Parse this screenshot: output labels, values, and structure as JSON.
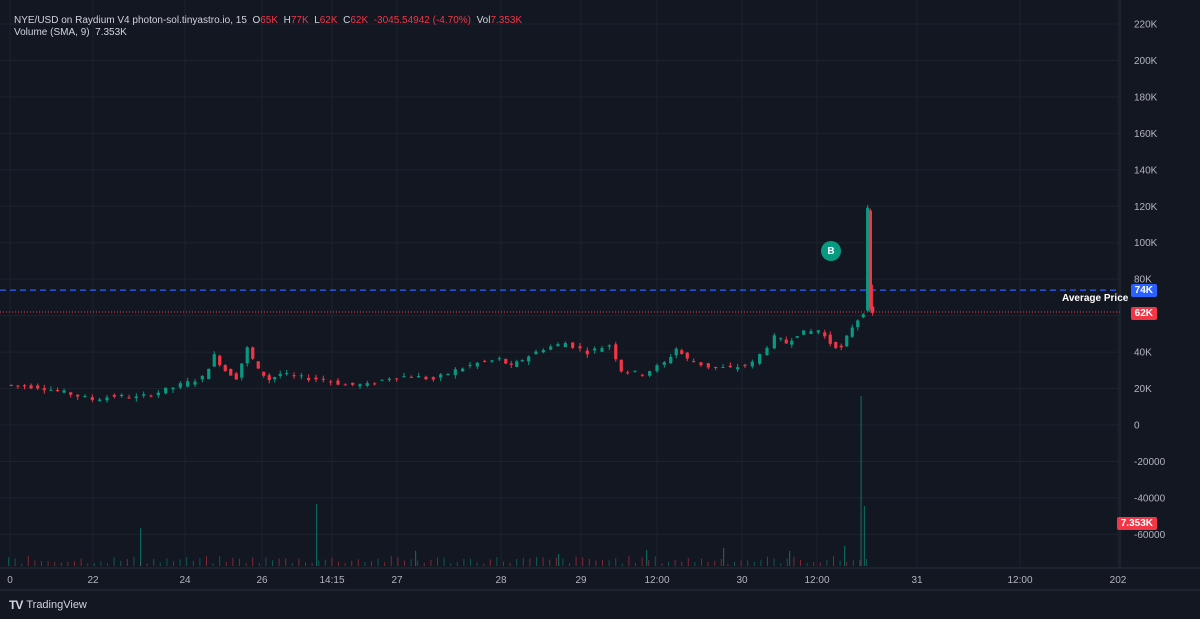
{
  "legend": {
    "symbol": "NYE/USD on Raydium V4 photon-sol.tinyastro.io, 15",
    "o_label": "O",
    "o_val": "65K",
    "h_label": "H",
    "h_val": "77K",
    "l_label": "L",
    "l_val": "62K",
    "c_label": "C",
    "c_val": "62K",
    "change": "-3045.54942 (-4.70%)",
    "vol_label": "Vol",
    "vol_val": "7.353K",
    "volume_study": "Volume (SMA, 9)",
    "volume_study_val": "7.353K"
  },
  "markers": {
    "buy_label": "B",
    "avg_price_label": "Average Price",
    "avg_price_tag": "74K",
    "last_price_tag": "62K",
    "volume_tag": "7.353K"
  },
  "brand": {
    "logo": "TV",
    "name": "TradingView"
  },
  "chart_data": {
    "type": "candlestick",
    "y_ticks": [
      220000,
      200000,
      180000,
      160000,
      140000,
      120000,
      100000,
      80000,
      60000,
      40000,
      20000,
      0,
      -20000,
      -40000,
      -60000
    ],
    "y_tick_labels": [
      "220K",
      "200K",
      "180K",
      "160K",
      "140K",
      "120K",
      "100K",
      "80K",
      "60K",
      "40K",
      "20K",
      "0",
      "-20000",
      "-40000",
      "-60000"
    ],
    "ylim": [
      -65000,
      225000
    ],
    "x_tick_labels": [
      "0",
      "22",
      "24",
      "26",
      "14:15",
      "27",
      "28",
      "29",
      "12:00",
      "30",
      "12:00",
      "31",
      "12:00",
      "202"
    ],
    "avg_price": 74000,
    "last_price": 62000,
    "price_path": [
      [
        0,
        22000
      ],
      [
        3,
        21000
      ],
      [
        6,
        17000
      ],
      [
        8,
        14000
      ],
      [
        10,
        16000
      ],
      [
        12,
        15000
      ],
      [
        14,
        18000
      ],
      [
        16,
        22000
      ],
      [
        18,
        26000
      ],
      [
        19,
        38000
      ],
      [
        20,
        30000
      ],
      [
        21,
        26000
      ],
      [
        22,
        42000
      ],
      [
        23,
        30000
      ],
      [
        24,
        25000
      ],
      [
        25,
        28000
      ],
      [
        27,
        26000
      ],
      [
        29,
        25000
      ],
      [
        31,
        22000
      ],
      [
        33,
        22000
      ],
      [
        35,
        26000
      ],
      [
        37,
        27000
      ],
      [
        39,
        25000
      ],
      [
        41,
        30000
      ],
      [
        43,
        34000
      ],
      [
        45,
        36000
      ],
      [
        46,
        32000
      ],
      [
        47,
        36000
      ],
      [
        49,
        42000
      ],
      [
        51,
        45000
      ],
      [
        53,
        40000
      ],
      [
        55,
        44000
      ],
      [
        56,
        30000
      ],
      [
        58,
        28000
      ],
      [
        60,
        34000
      ],
      [
        61,
        42000
      ],
      [
        62,
        36000
      ],
      [
        64,
        32000
      ],
      [
        66,
        31000
      ],
      [
        68,
        34000
      ],
      [
        70,
        48000
      ],
      [
        71,
        45000
      ],
      [
        72,
        50000
      ],
      [
        74,
        52000
      ],
      [
        75,
        45000
      ],
      [
        76,
        42000
      ],
      [
        77,
        54000
      ],
      [
        78,
        62000
      ],
      [
        78.3,
        118000
      ],
      [
        78.5,
        64000
      ],
      [
        78.7,
        62000
      ]
    ],
    "volume_spikes": [
      [
        12,
        38
      ],
      [
        28,
        62
      ],
      [
        37,
        15
      ],
      [
        50,
        12
      ],
      [
        58,
        16
      ],
      [
        65,
        18
      ],
      [
        71,
        15
      ],
      [
        76,
        20
      ],
      [
        77.5,
        170
      ],
      [
        77.8,
        60
      ]
    ]
  }
}
